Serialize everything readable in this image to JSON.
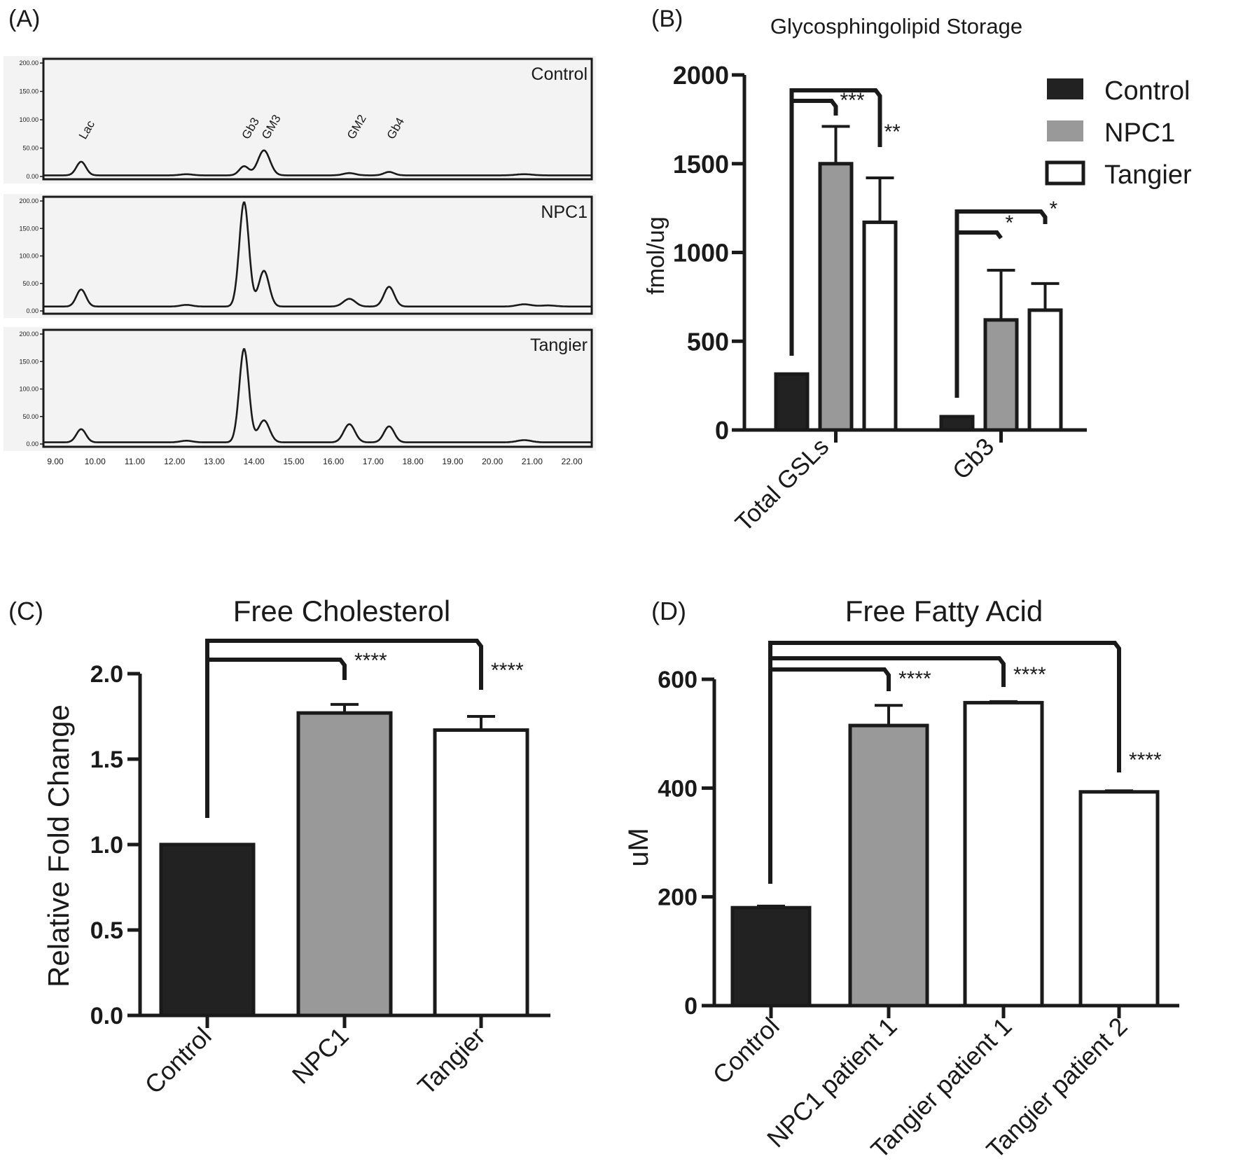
{
  "chart_data": [
    {
      "type": "line",
      "panel_label": "(A)",
      "x_ticks": [
        "9.00",
        "10.00",
        "11.00",
        "12.00",
        "13.00",
        "14.00",
        "15.00",
        "16.00",
        "17.00",
        "18.00",
        "19.00",
        "20.00",
        "21.00",
        "22.00"
      ],
      "y_ticks": [
        "0.00",
        "50.00",
        "100.00",
        "150.00",
        "200.00"
      ],
      "xlim": [
        8.7,
        22.5
      ],
      "ylim": [
        0,
        210
      ],
      "grid": false,
      "peak_labels": [
        {
          "text": "Lac",
          "x": 9.65
        },
        {
          "text": "Gb3",
          "x": 13.75
        },
        {
          "text": "GM3",
          "x": 14.25
        },
        {
          "text": "GM2",
          "x": 16.4
        },
        {
          "text": "Gb4",
          "x": 17.4
        }
      ],
      "traces": [
        {
          "name": "Control",
          "baseline": 2,
          "points": [
            [
              8.7,
              2
            ],
            [
              22.5,
              2
            ]
          ],
          "peaks": [
            [
              9.65,
              24,
              0.12
            ],
            [
              12.3,
              2,
              0.15
            ],
            [
              13.75,
              16,
              0.12
            ],
            [
              14.25,
              44,
              0.15
            ],
            [
              16.4,
              4,
              0.15
            ],
            [
              17.4,
              6,
              0.13
            ],
            [
              20.8,
              2,
              0.2
            ]
          ]
        },
        {
          "name": "NPC1",
          "baseline": 8,
          "points": [
            [
              8.7,
              8
            ],
            [
              22.5,
              8
            ]
          ],
          "peaks": [
            [
              9.65,
              31,
              0.12
            ],
            [
              12.3,
              3,
              0.15
            ],
            [
              13.75,
              190,
              0.12
            ],
            [
              14.25,
              65,
              0.13
            ],
            [
              16.4,
              14,
              0.15
            ],
            [
              17.4,
              36,
              0.13
            ],
            [
              20.8,
              4,
              0.18
            ],
            [
              21.4,
              2,
              0.2
            ]
          ]
        },
        {
          "name": "Tangier",
          "baseline": 3,
          "points": [
            [
              8.7,
              3
            ],
            [
              22.5,
              3
            ]
          ],
          "peaks": [
            [
              9.65,
              24,
              0.12
            ],
            [
              12.3,
              3,
              0.15
            ],
            [
              13.75,
              170,
              0.12
            ],
            [
              14.25,
              40,
              0.14
            ],
            [
              16.4,
              33,
              0.14
            ],
            [
              17.4,
              29,
              0.13
            ],
            [
              20.8,
              4,
              0.18
            ]
          ]
        }
      ]
    },
    {
      "type": "bar",
      "panel_label": "(B)",
      "title": "Glycosphingolipid Storage",
      "ylabel": "fmol/ug",
      "categories": [
        "Total GSLs",
        "Gb3"
      ],
      "ylim": [
        0,
        2000
      ],
      "y_ticks": [
        "0",
        "500",
        "1000",
        "1500",
        "2000"
      ],
      "legend": "top-right",
      "series": [
        {
          "name": "Control",
          "color": "#222222",
          "values": [
            315,
            75
          ],
          "errors": [
            0,
            0
          ]
        },
        {
          "name": "NPC1",
          "color": "#999999",
          "values": [
            1500,
            620
          ],
          "errors": [
            210,
            280
          ]
        },
        {
          "name": "Tangier",
          "color": "#ffffff",
          "values": [
            1170,
            675
          ],
          "errors": [
            250,
            150
          ]
        }
      ],
      "significance": [
        {
          "category": 0,
          "from": 0,
          "to": 1,
          "label": "***"
        },
        {
          "category": 0,
          "from": 0,
          "to": 2,
          "label": "**"
        },
        {
          "category": 1,
          "from": 0,
          "to": 1,
          "label": "*"
        },
        {
          "category": 1,
          "from": 0,
          "to": 2,
          "label": "*"
        }
      ]
    },
    {
      "type": "bar",
      "panel_label": "(C)",
      "title": "Free Cholesterol",
      "ylabel": "Relative Fold Change",
      "categories": [
        "Control",
        "NPC1",
        "Tangier"
      ],
      "colors": [
        "#222222",
        "#999999",
        "#ffffff"
      ],
      "values": [
        1.0,
        1.77,
        1.67
      ],
      "errors": [
        0,
        0.05,
        0.08
      ],
      "ylim": [
        0,
        2.0
      ],
      "y_ticks": [
        "0.0",
        "0.5",
        "1.0",
        "1.5",
        "2.0"
      ],
      "significance": [
        {
          "from": 0,
          "to": 1,
          "label": "****"
        },
        {
          "from": 0,
          "to": 2,
          "label": "****"
        }
      ]
    },
    {
      "type": "bar",
      "panel_label": "(D)",
      "title": "Free Fatty Acid",
      "ylabel": "uM",
      "categories": [
        "Control",
        "NPC1 patient 1",
        "Tangier patient 1",
        "Tangier patient 2"
      ],
      "colors": [
        "#222222",
        "#999999",
        "#ffffff",
        "#ffffff"
      ],
      "values": [
        180,
        515,
        557,
        393
      ],
      "errors": [
        3,
        37,
        2,
        2
      ],
      "ylim": [
        0,
        600
      ],
      "y_ticks": [
        "0",
        "200",
        "400",
        "600"
      ],
      "significance": [
        {
          "from": 0,
          "to": 1,
          "label": "****"
        },
        {
          "from": 0,
          "to": 2,
          "label": "****"
        },
        {
          "from": 0,
          "to": 3,
          "label": "****"
        }
      ]
    }
  ]
}
